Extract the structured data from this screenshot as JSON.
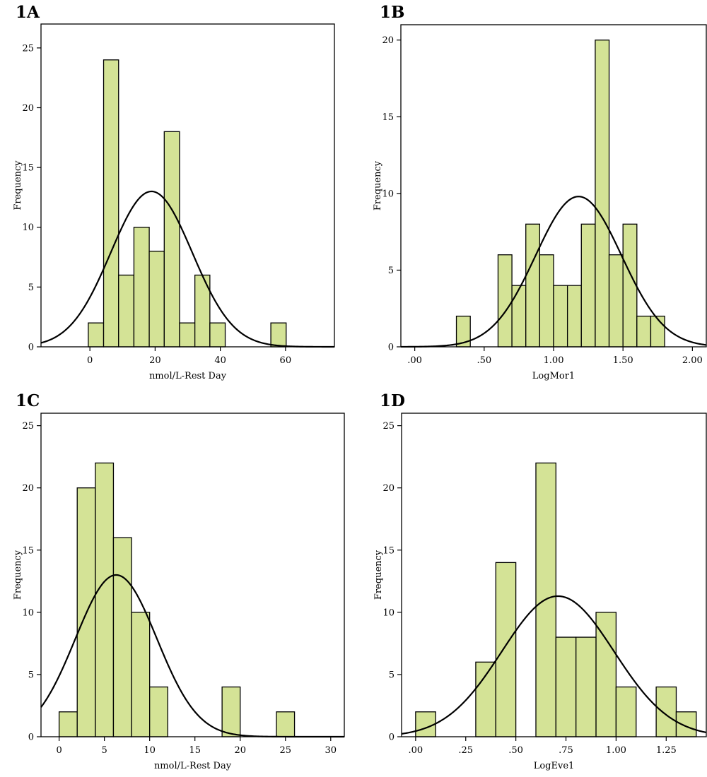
{
  "colors": {
    "bar_fill": "#d4e396",
    "bar_stroke": "#000000",
    "curve": "#000000",
    "frame": "#000000"
  },
  "chart_data": [
    {
      "panel_label": "1A",
      "type": "bar",
      "xlabel": "nmol/L-Rest Day",
      "ylabel": "Frequency",
      "xlim": [
        -15,
        75
      ],
      "ylim": [
        0,
        27
      ],
      "xticks": [
        0,
        20,
        40,
        60
      ],
      "xtick_labels": [
        "0",
        "20",
        "40",
        "60"
      ],
      "yticks": [
        0,
        5,
        10,
        15,
        20,
        25
      ],
      "ytick_labels": [
        "0",
        "5",
        "10",
        "15",
        "20",
        "25"
      ],
      "bins": [
        {
          "x0": -0.5,
          "x1": 4.2,
          "count": 2
        },
        {
          "x0": 4.2,
          "x1": 8.8,
          "count": 24
        },
        {
          "x0": 8.8,
          "x1": 13.5,
          "count": 6
        },
        {
          "x0": 13.5,
          "x1": 18.2,
          "count": 10
        },
        {
          "x0": 18.2,
          "x1": 22.8,
          "count": 8
        },
        {
          "x0": 22.8,
          "x1": 27.5,
          "count": 18
        },
        {
          "x0": 27.5,
          "x1": 32.2,
          "count": 2
        },
        {
          "x0": 32.2,
          "x1": 36.8,
          "count": 6
        },
        {
          "x0": 36.8,
          "x1": 41.5,
          "count": 2
        },
        {
          "x0": 55.5,
          "x1": 60.2,
          "count": 2
        }
      ],
      "normal_curve": {
        "mean": 18.9,
        "sd": 12.5,
        "peak": 13.0
      }
    },
    {
      "panel_label": "1B",
      "type": "bar",
      "xlabel": "LogMor1",
      "ylabel": "Frequency",
      "xlim": [
        -0.1,
        2.1
      ],
      "ylim": [
        0,
        21
      ],
      "xticks": [
        0,
        0.5,
        1.0,
        1.5,
        2.0
      ],
      "xtick_labels": [
        ".00",
        ".50",
        "1.00",
        "1.50",
        "2.00"
      ],
      "yticks": [
        0,
        5,
        10,
        15,
        20
      ],
      "ytick_labels": [
        "0",
        "5",
        "10",
        "15",
        "20"
      ],
      "bins": [
        {
          "x0": 0.3,
          "x1": 0.4,
          "count": 2
        },
        {
          "x0": 0.6,
          "x1": 0.7,
          "count": 6
        },
        {
          "x0": 0.7,
          "x1": 0.8,
          "count": 4
        },
        {
          "x0": 0.8,
          "x1": 0.9,
          "count": 8
        },
        {
          "x0": 0.9,
          "x1": 1.0,
          "count": 6
        },
        {
          "x0": 1.0,
          "x1": 1.1,
          "count": 4
        },
        {
          "x0": 1.1,
          "x1": 1.2,
          "count": 4
        },
        {
          "x0": 1.2,
          "x1": 1.3,
          "count": 8
        },
        {
          "x0": 1.3,
          "x1": 1.4,
          "count": 20
        },
        {
          "x0": 1.4,
          "x1": 1.5,
          "count": 6
        },
        {
          "x0": 1.5,
          "x1": 1.6,
          "count": 8
        },
        {
          "x0": 1.6,
          "x1": 1.7,
          "count": 2
        },
        {
          "x0": 1.7,
          "x1": 1.8,
          "count": 2
        }
      ],
      "normal_curve": {
        "mean": 1.18,
        "sd": 0.31,
        "peak": 9.8
      }
    },
    {
      "panel_label": "1C",
      "type": "bar",
      "xlabel": "nmol/L-Rest Day",
      "ylabel": "Frequency",
      "xlim": [
        -2,
        31.5
      ],
      "ylim": [
        0,
        26
      ],
      "xticks": [
        0,
        5,
        10,
        15,
        20,
        25,
        30
      ],
      "xtick_labels": [
        "0",
        "5",
        "10",
        "15",
        "20",
        "25",
        "30"
      ],
      "yticks": [
        0,
        5,
        10,
        15,
        20,
        25
      ],
      "ytick_labels": [
        "0",
        "5",
        "10",
        "15",
        "20",
        "25"
      ],
      "bins": [
        {
          "x0": 0,
          "x1": 2,
          "count": 2
        },
        {
          "x0": 2,
          "x1": 4,
          "count": 20
        },
        {
          "x0": 4,
          "x1": 6,
          "count": 22
        },
        {
          "x0": 6,
          "x1": 8,
          "count": 16
        },
        {
          "x0": 8,
          "x1": 10,
          "count": 10
        },
        {
          "x0": 10,
          "x1": 12,
          "count": 4
        },
        {
          "x0": 18,
          "x1": 20,
          "count": 4
        },
        {
          "x0": 24,
          "x1": 26,
          "count": 2
        }
      ],
      "normal_curve": {
        "mean": 6.3,
        "sd": 4.5,
        "peak": 13.0
      }
    },
    {
      "panel_label": "1D",
      "type": "bar",
      "xlabel": "LogEve1",
      "ylabel": "Frequency",
      "xlim": [
        -0.07,
        1.45
      ],
      "ylim": [
        0,
        26
      ],
      "xticks": [
        0,
        0.25,
        0.5,
        0.75,
        1.0,
        1.25
      ],
      "xtick_labels": [
        ".00",
        ".25",
        ".50",
        ".75",
        "1.00",
        "1.25"
      ],
      "yticks": [
        0,
        5,
        10,
        15,
        20,
        25
      ],
      "ytick_labels": [
        "0",
        "5",
        "10",
        "15",
        "20",
        "25"
      ],
      "bins": [
        {
          "x0": 0.0,
          "x1": 0.1,
          "count": 2
        },
        {
          "x0": 0.3,
          "x1": 0.4,
          "count": 6
        },
        {
          "x0": 0.4,
          "x1": 0.5,
          "count": 14
        },
        {
          "x0": 0.6,
          "x1": 0.7,
          "count": 22
        },
        {
          "x0": 0.7,
          "x1": 0.8,
          "count": 8
        },
        {
          "x0": 0.8,
          "x1": 0.9,
          "count": 8
        },
        {
          "x0": 0.9,
          "x1": 1.0,
          "count": 10
        },
        {
          "x0": 1.0,
          "x1": 1.1,
          "count": 4
        },
        {
          "x0": 1.2,
          "x1": 1.3,
          "count": 4
        },
        {
          "x0": 1.3,
          "x1": 1.4,
          "count": 2
        }
      ],
      "normal_curve": {
        "mean": 0.71,
        "sd": 0.28,
        "peak": 11.3
      }
    }
  ]
}
